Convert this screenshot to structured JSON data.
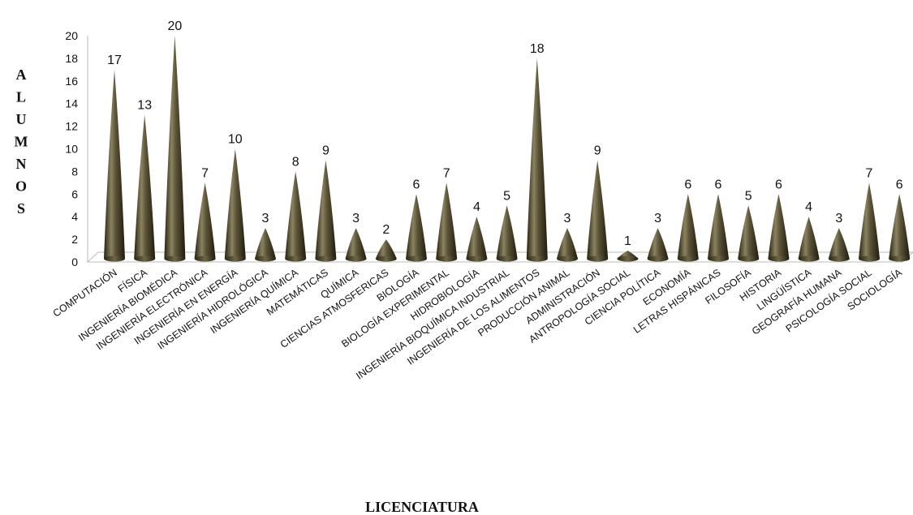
{
  "chart_data": {
    "type": "bar",
    "bar_shape": "cone",
    "bar_color": "#4d4630",
    "ylabel": "ALUMNOS",
    "xlabel": "LICENCIATURA",
    "ylim": [
      0,
      20
    ],
    "yticks": [
      0,
      2,
      4,
      6,
      8,
      10,
      12,
      14,
      16,
      18,
      20
    ],
    "grid": false,
    "legend": "none",
    "categories": [
      "COMPUTACIÓN",
      "FÍSICA",
      "INGENIERÍA BIOMÉDICA",
      "INGENIERÍA ELECTRÓNICA",
      "INGENIERÍA EN ENERGÍA",
      "INGENIERÍA HIDROLÓGICA",
      "INGENIERÍA QUÍMICA",
      "MATEMÁTICAS",
      "QUÍMICA",
      "CIENCIAS ATMOSFERICAS",
      "BIOLOGÍA",
      "BIOLOGÍA EXPERIMENTAL",
      "HIDROBIOLOGÍA",
      "INGENIERÍA BIOQUÍMICA INDUSTRIAL",
      "INGENIERÍA DE LOS ALIMENTOS",
      "PRODUCCIÓN ANIMAL",
      "ADMINISTRACIÓN",
      "ANTROPOLOGÍA SOCIAL",
      "CIENCIA POLÍTICA",
      "ECONOMÍA",
      "LETRAS HISPÁNICAS",
      "FILOSOFÍA",
      "HISTORIA",
      "LINGÜÍSTICA",
      "GEOGRAFÍA HUMANA",
      "PSICOLOGÍA SOCIAL",
      "SOCIOLOGÍA"
    ],
    "values": [
      17,
      13,
      20,
      7,
      10,
      3,
      8,
      9,
      3,
      2,
      6,
      7,
      4,
      5,
      18,
      3,
      9,
      1,
      3,
      6,
      6,
      5,
      6,
      4,
      3,
      7,
      6
    ]
  }
}
